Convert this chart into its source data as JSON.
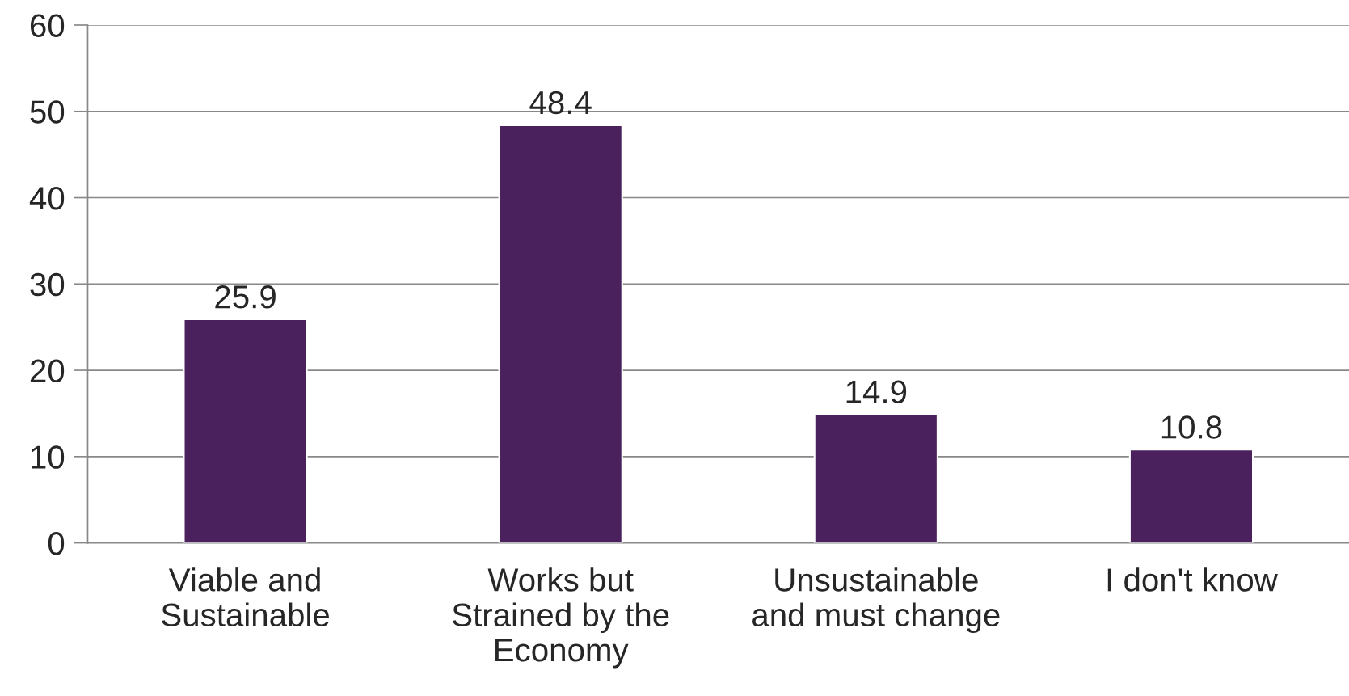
{
  "chart_data": {
    "type": "bar",
    "categories": [
      "Viable and\nSustainable",
      "Works but\nStrained by the\nEconomy",
      "Unsustainable\nand must change",
      "I don't know"
    ],
    "values": [
      25.9,
      48.4,
      14.9,
      10.8
    ],
    "color": "#4a215c",
    "ylim": [
      0,
      60
    ],
    "yticks": [
      0,
      10,
      20,
      30,
      40,
      50,
      60
    ],
    "grid": "y",
    "data_labels": true
  }
}
